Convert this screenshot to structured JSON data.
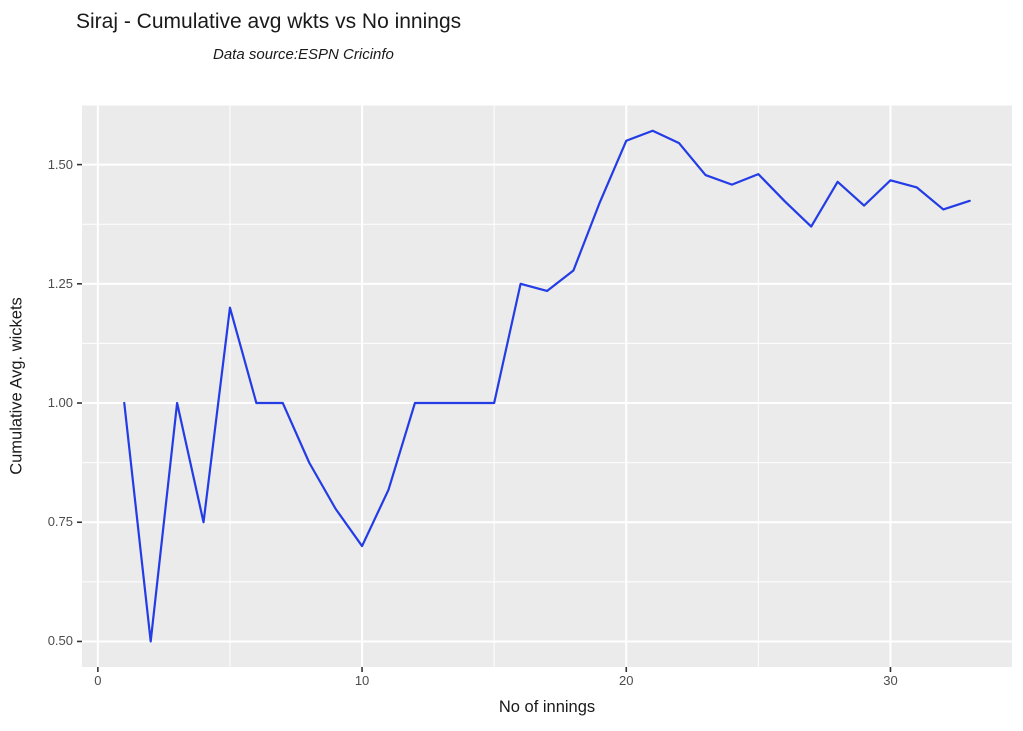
{
  "chart": {
    "title": "Siraj - Cumulative avg wkts vs No innings",
    "subtitle": "Data source:ESPN Cricinfo",
    "xlabel": "No of innings",
    "ylabel": "Cumulative Avg. wickets"
  },
  "chart_data": {
    "type": "line",
    "title": "Siraj - Cumulative avg wkts vs No innings",
    "subtitle": "Data source:ESPN Cricinfo",
    "xlabel": "No of innings",
    "ylabel": "Cumulative Avg. wickets",
    "x": [
      1,
      2,
      3,
      4,
      5,
      6,
      7,
      8,
      9,
      10,
      11,
      12,
      13,
      14,
      15,
      16,
      17,
      18,
      19,
      20,
      21,
      22,
      23,
      24,
      25,
      26,
      27,
      28,
      29,
      30,
      31,
      32,
      33
    ],
    "y": [
      1.0,
      0.5,
      1.0,
      0.75,
      1.2,
      1.0,
      1.0,
      0.875,
      0.778,
      0.7,
      0.818,
      1.0,
      1.0,
      1.0,
      1.0,
      1.25,
      1.235,
      1.278,
      1.421,
      1.55,
      1.571,
      1.545,
      1.478,
      1.458,
      1.48,
      1.423,
      1.37,
      1.464,
      1.414,
      1.467,
      1.452,
      1.406,
      1.424
    ],
    "xlim": [
      -0.6,
      34.6
    ],
    "ylim": [
      0.4464,
      1.625
    ],
    "x_ticks": [
      0,
      10,
      20,
      30
    ],
    "x_tick_labels": [
      "0",
      "10",
      "20",
      "30"
    ],
    "y_ticks": [
      0.5,
      0.75,
      1.0,
      1.25,
      1.5
    ],
    "y_tick_labels": [
      "0.50",
      "0.75",
      "1.00",
      "1.25",
      "1.50"
    ],
    "x_minor_ticks": [
      5,
      15,
      25
    ],
    "y_minor_ticks": [
      0.625,
      0.875,
      1.125,
      1.375,
      1.625
    ],
    "grid": "on",
    "legend": "none",
    "colors": {
      "line": "#233ce6",
      "panel_background": "#ebebeb",
      "gridline": "#ffffff",
      "tick_mark": "#333333",
      "tick_label": "#4d4d4d",
      "text": "#1a1a1a"
    }
  }
}
